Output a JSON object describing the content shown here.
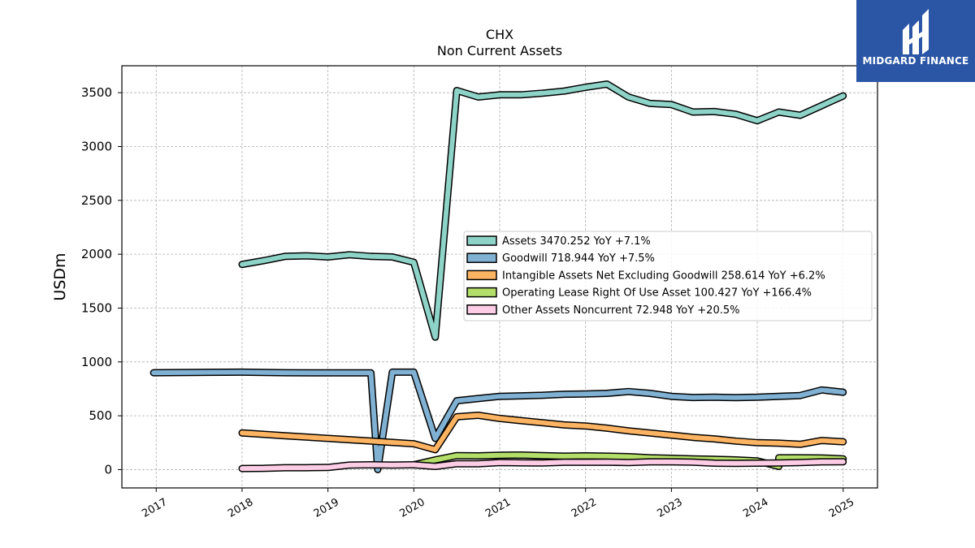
{
  "title": "CHX",
  "subtitle": "Non Current  Assets",
  "logo": {
    "text": "MIDGARD FINANCE",
    "color": "#2b56a6"
  },
  "chart_data": {
    "type": "line",
    "ylabel": "USDm",
    "xlabel": "",
    "ylim": [
      -170,
      3750
    ],
    "xlim": [
      2016.6,
      2025.4
    ],
    "yticks": [
      0,
      500,
      1000,
      1500,
      2000,
      2500,
      3000,
      3500
    ],
    "xticks": [
      "2017",
      "2018",
      "2019",
      "2020",
      "2021",
      "2022",
      "2023",
      "2024",
      "2025"
    ],
    "grid": true,
    "legend_position": "center-right",
    "series": [
      {
        "name": "Assets",
        "legend": "Assets  3470.252 YoY +7.1%",
        "color": "#8dd3c7",
        "x": [
          2018.0,
          2018.25,
          2018.5,
          2018.75,
          2019.0,
          2019.25,
          2019.5,
          2019.75,
          2020.0,
          2020.25,
          2020.5,
          2020.75,
          2021.0,
          2021.25,
          2021.5,
          2021.75,
          2022.0,
          2022.25,
          2022.5,
          2022.75,
          2023.0,
          2023.25,
          2023.5,
          2023.75,
          2024.0,
          2024.25,
          2024.5,
          2024.75,
          2025.0
        ],
        "values": [
          1905,
          1940,
          1980,
          1985,
          1975,
          1995,
          1980,
          1975,
          1925,
          1230,
          3520,
          3460,
          3480,
          3480,
          3495,
          3515,
          3550,
          3580,
          3460,
          3400,
          3390,
          3320,
          3325,
          3300,
          3240,
          3320,
          3290,
          3380,
          3470
        ]
      },
      {
        "name": "Goodwill",
        "legend": "Goodwill  718.944 YoY +7.5%",
        "color": "#80b1d3",
        "x": [
          2016.97,
          2018.0,
          2018.5,
          2019.0,
          2019.25,
          2019.5,
          2019.58,
          2019.75,
          2020.0,
          2020.25,
          2020.5,
          2020.75,
          2021.0,
          2021.25,
          2021.5,
          2021.75,
          2022.0,
          2022.25,
          2022.5,
          2022.75,
          2023.0,
          2023.25,
          2023.5,
          2023.75,
          2024.0,
          2024.25,
          2024.5,
          2024.75,
          2025.0
        ],
        "values": [
          900,
          905,
          900,
          898,
          898,
          898,
          0,
          905,
          905,
          290,
          640,
          660,
          680,
          685,
          690,
          700,
          702,
          708,
          725,
          708,
          680,
          670,
          672,
          668,
          672,
          680,
          688,
          740,
          719
        ]
      },
      {
        "name": "Intangible Assets Net Excluding Goodwill",
        "legend": "Intangible Assets Net Excluding Goodwill  258.614 YoY +6.2%",
        "color": "#fdb462",
        "x": [
          2018.0,
          2018.5,
          2019.0,
          2019.5,
          2020.0,
          2020.25,
          2020.5,
          2020.75,
          2021.0,
          2021.25,
          2021.5,
          2021.75,
          2022.0,
          2022.25,
          2022.5,
          2022.75,
          2023.0,
          2023.25,
          2023.5,
          2023.75,
          2024.0,
          2024.25,
          2024.5,
          2024.75,
          2025.0
        ],
        "values": [
          340,
          315,
          290,
          265,
          240,
          185,
          490,
          505,
          475,
          455,
          435,
          415,
          405,
          385,
          360,
          340,
          320,
          300,
          285,
          265,
          250,
          245,
          235,
          270,
          259
        ]
      },
      {
        "name": "Operating Lease Right Of Use Asset",
        "legend": "Operating Lease Right Of Use Asset  100.427 YoY +166.4%",
        "color": "#b3de69",
        "x": [
          2020.0,
          2020.25,
          2020.5,
          2020.75,
          2021.0,
          2021.25,
          2021.5,
          2021.75,
          2022.0,
          2022.25,
          2022.5,
          2022.75,
          2023.0,
          2023.25,
          2023.5,
          2023.75,
          2024.0,
          2024.25,
          2024.25,
          2024.5,
          2024.75,
          2025.0
        ],
        "values": [
          45,
          90,
          130,
          128,
          133,
          135,
          130,
          125,
          128,
          125,
          120,
          110,
          105,
          100,
          95,
          90,
          80,
          30,
          110,
          110,
          108,
          100
        ]
      },
      {
        "name": "Other Assets Noncurrent",
        "legend": "Other Assets Noncurrent  72.948 YoY +20.5%",
        "color": "#fccde5",
        "x": [
          2018.0,
          2018.25,
          2018.5,
          2018.75,
          2019.0,
          2019.25,
          2019.5,
          2019.75,
          2020.0,
          2020.25,
          2020.5,
          2020.75,
          2021.0,
          2021.25,
          2021.5,
          2021.75,
          2022.0,
          2022.25,
          2022.5,
          2022.75,
          2023.0,
          2023.25,
          2023.5,
          2023.75,
          2024.0,
          2024.25,
          2024.5,
          2024.75,
          2025.0
        ],
        "values": [
          10,
          12,
          18,
          18,
          20,
          42,
          45,
          42,
          45,
          30,
          55,
          55,
          65,
          63,
          62,
          68,
          68,
          70,
          65,
          72,
          72,
          70,
          60,
          58,
          60,
          62,
          65,
          72,
          73
        ]
      }
    ]
  }
}
